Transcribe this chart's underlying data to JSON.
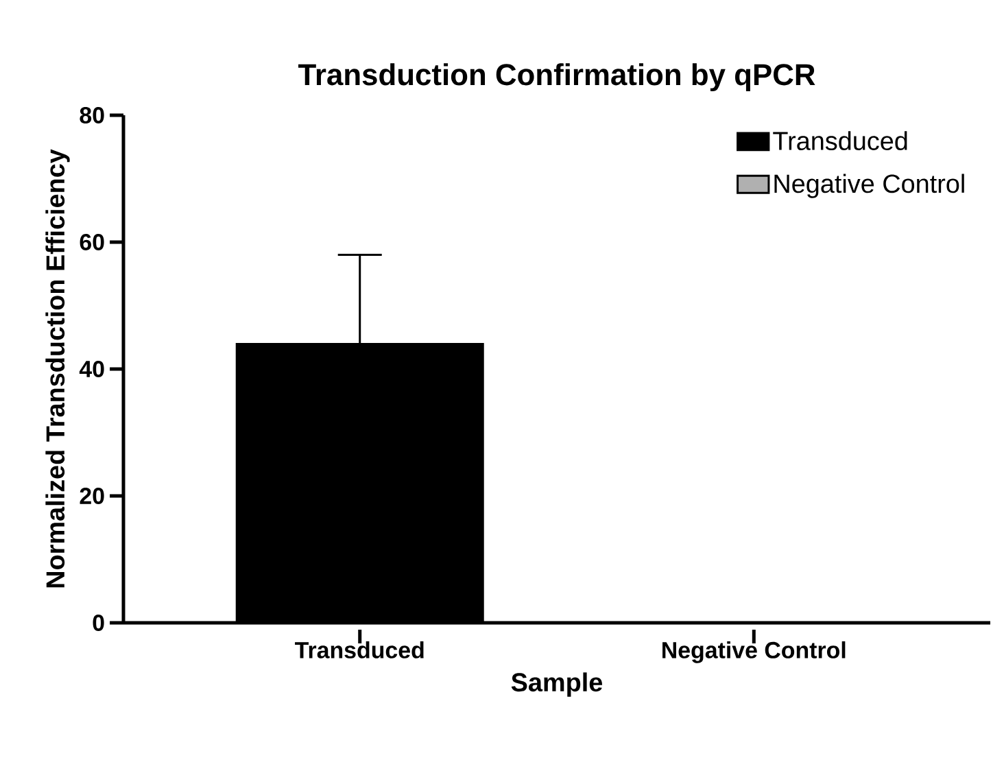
{
  "chart_data": {
    "type": "bar",
    "title": "Transduction Confirmation by qPCR",
    "xlabel": "Sample",
    "ylabel": "Normalized Transduction Efficiency",
    "categories": [
      "Transduced",
      "Negative Control"
    ],
    "series": [
      {
        "name": "Transduced",
        "color": "#000000",
        "values": [
          44,
          null
        ],
        "errors": [
          14,
          null
        ]
      },
      {
        "name": "Negative Control",
        "color": "#b0b0b0",
        "values": [
          null,
          0
        ]
      }
    ],
    "ylim": [
      0,
      80
    ],
    "yticks": [
      0,
      20,
      40,
      60,
      80
    ],
    "legend": "top right"
  }
}
